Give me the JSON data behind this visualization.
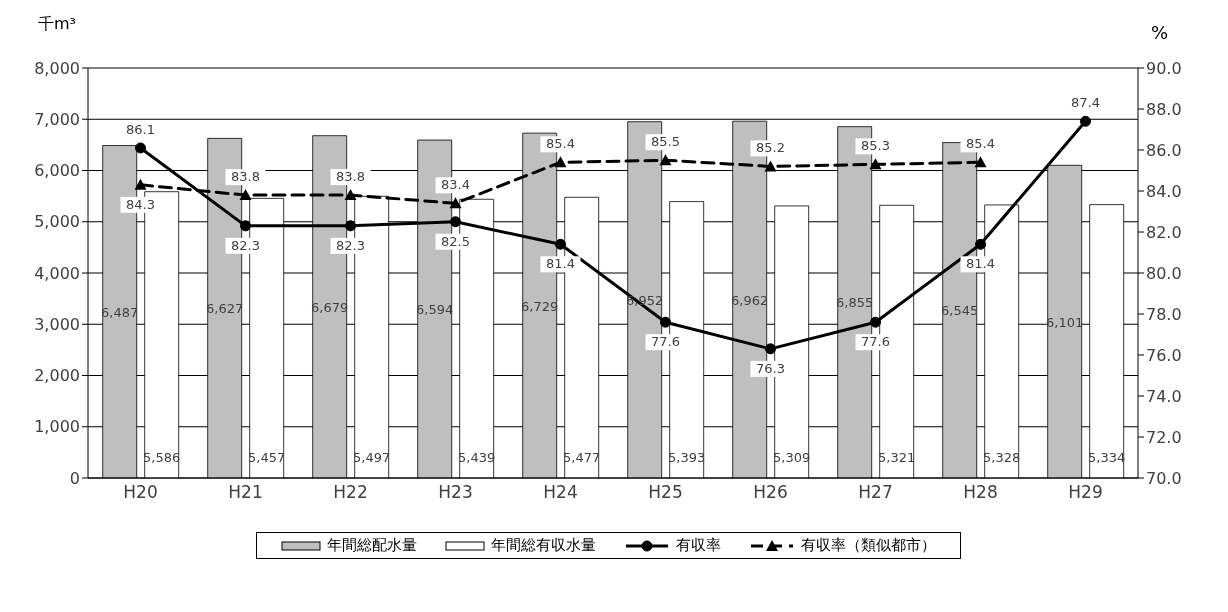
{
  "chart_data": {
    "type": "bar",
    "ylabel": "千m³",
    "y2label": "%",
    "categories": [
      "H20",
      "H21",
      "H22",
      "H23",
      "H24",
      "H25",
      "H26",
      "H27",
      "H28",
      "H29"
    ],
    "series": [
      {
        "name": "年間総配水量",
        "color": "#bfbfbf",
        "values": [
          6487,
          6627,
          6679,
          6594,
          6729,
          6952,
          6962,
          6855,
          6545,
          6101
        ],
        "value_labels": [
          "6,487",
          "6,627",
          "6,679",
          "6,594",
          "6,729",
          "6,952",
          "6,962",
          "6,855",
          "6,545",
          "6,101"
        ]
      },
      {
        "name": "年間総有収水量",
        "color": "#ffffff",
        "values": [
          5586,
          5457,
          5497,
          5439,
          5477,
          5393,
          5309,
          5321,
          5328,
          5334
        ],
        "value_labels": [
          "5,586",
          "5,457",
          "5,497",
          "5,439",
          "5,477",
          "5,393",
          "5,309",
          "5,321",
          "5,328",
          "5,334"
        ]
      },
      {
        "name": "有収率",
        "type": "line",
        "axis": "y2",
        "color": "#000000",
        "marker": "circle",
        "line_style": "solid",
        "values": [
          86.1,
          82.3,
          82.3,
          82.5,
          81.4,
          77.6,
          76.3,
          77.6,
          81.4,
          87.4
        ],
        "value_labels": [
          "86.1",
          "82.3",
          "82.3",
          "82.5",
          "81.4",
          "77.6",
          "76.3",
          "77.6",
          "81.4",
          "87.4"
        ]
      },
      {
        "name": "有収率（類似都市）",
        "type": "line",
        "axis": "y2",
        "color": "#000000",
        "marker": "triangle",
        "line_style": "dashed",
        "values": [
          84.3,
          83.8,
          83.8,
          83.4,
          85.4,
          85.5,
          85.2,
          85.3,
          85.4,
          null
        ],
        "value_labels": [
          "84.3",
          "83.8",
          "83.8",
          "83.4",
          "85.4",
          "85.5",
          "85.2",
          "85.3",
          "85.4",
          null
        ]
      }
    ],
    "ylim": [
      0,
      8000
    ],
    "yticks": [
      {
        "value": 0,
        "label": "0"
      },
      {
        "value": 1000,
        "label": "1,000"
      },
      {
        "value": 2000,
        "label": "2,000"
      },
      {
        "value": 3000,
        "label": "3,000"
      },
      {
        "value": 4000,
        "label": "4,000"
      },
      {
        "value": 5000,
        "label": "5,000"
      },
      {
        "value": 6000,
        "label": "6,000"
      },
      {
        "value": 7000,
        "label": "7,000"
      },
      {
        "value": 8000,
        "label": "8,000"
      }
    ],
    "y2lim": [
      70,
      90
    ],
    "y2ticks": [
      {
        "value": 70,
        "label": "70.0"
      },
      {
        "value": 72,
        "label": "72.0"
      },
      {
        "value": 74,
        "label": "74.0"
      },
      {
        "value": 76,
        "label": "76.0"
      },
      {
        "value": 78,
        "label": "78.0"
      },
      {
        "value": 80,
        "label": "80.0"
      },
      {
        "value": 82,
        "label": "82.0"
      },
      {
        "value": 84,
        "label": "84.0"
      },
      {
        "value": 86,
        "label": "86.0"
      },
      {
        "value": 88,
        "label": "88.0"
      },
      {
        "value": 90,
        "label": "90.0"
      }
    ],
    "grid": "y",
    "legend": "bottom"
  }
}
